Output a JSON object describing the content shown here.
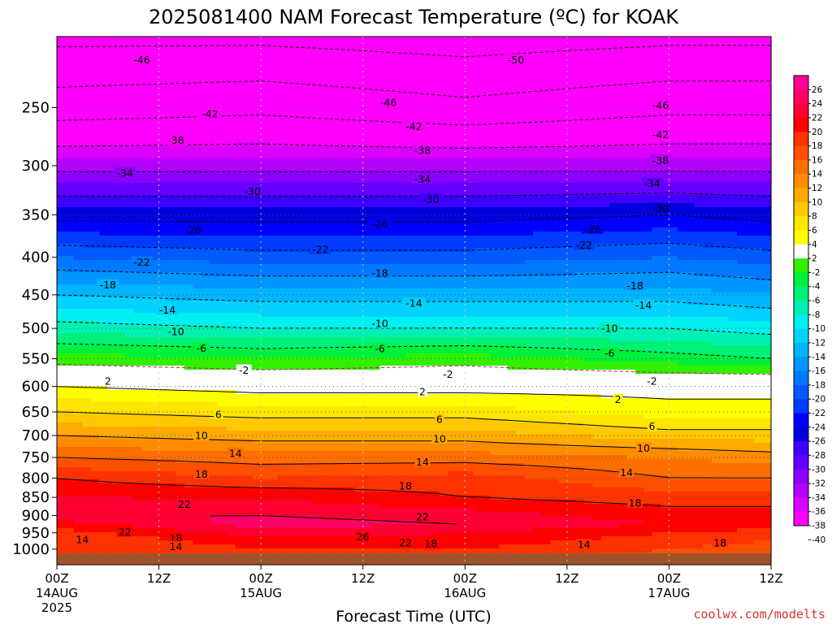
{
  "chart_data": {
    "type": "heatmap",
    "title": "2025081400 NAM Forecast Temperature (ºC) for KOAK",
    "xlabel": "Forecast Time (UTC)",
    "ylabel": "",
    "y_scale": "log",
    "y_range_hpa": [
      200,
      1050
    ],
    "x_range_hours": [
      0,
      84
    ],
    "x_ticks": [
      {
        "hour": 0,
        "lines": [
          "00Z",
          "14AUG",
          "2025"
        ]
      },
      {
        "hour": 12,
        "lines": [
          "12Z"
        ]
      },
      {
        "hour": 24,
        "lines": [
          "00Z",
          "15AUG"
        ]
      },
      {
        "hour": 36,
        "lines": [
          "12Z"
        ]
      },
      {
        "hour": 48,
        "lines": [
          "00Z",
          "16AUG"
        ]
      },
      {
        "hour": 60,
        "lines": [
          "12Z"
        ]
      },
      {
        "hour": 72,
        "lines": [
          "00Z",
          "17AUG"
        ]
      },
      {
        "hour": 84,
        "lines": [
          "12Z"
        ]
      }
    ],
    "y_ticks": [
      "250",
      "300",
      "350",
      "400",
      "450",
      "500",
      "550",
      "600",
      "650",
      "700",
      "750",
      "800",
      "850",
      "900",
      "950",
      "1000"
    ],
    "grid": "dotted",
    "surface_color": "#a0522d",
    "surface_pressure_hpa": 1013,
    "colorbar": {
      "placement": "right",
      "levels": [
        "26",
        "24",
        "22",
        "20",
        "18",
        "16",
        "14",
        "12",
        "10",
        "8",
        "6",
        "4",
        "2",
        "-2",
        "-4",
        "-6",
        "-8",
        "-10",
        "-12",
        "-14",
        "-16",
        "-18",
        "-20",
        "-22",
        "-24",
        "-26",
        "-28",
        "-30",
        "-32",
        "-34",
        "-36",
        "-38",
        "-40"
      ],
      "colors": [
        "#ff0096",
        "#ff0064",
        "#ff0032",
        "#ff0000",
        "#ff3200",
        "#ff5000",
        "#ff6e00",
        "#ff8c00",
        "#ffaa00",
        "#ffc800",
        "#ffe600",
        "#ffff00",
        "#ffffff",
        "#30f000",
        "#00f03c",
        "#00f078",
        "#00f0b4",
        "#00f0f0",
        "#00d2ff",
        "#00b4ff",
        "#0096ff",
        "#0078ff",
        "#005aff",
        "#003cff",
        "#0000ff",
        "#0000dc",
        "#3c00ff",
        "#6400ff",
        "#8c00ff",
        "#b400ff",
        "#dc00ff",
        "#ff00ff"
      ]
    },
    "profiles": [
      {
        "hour": 0,
        "pressure_hpa": [
          1000,
          975,
          950,
          925,
          900,
          850,
          800,
          750,
          700,
          650,
          600,
          550,
          500,
          450,
          400,
          350,
          300,
          250,
          200
        ],
        "temp_c": [
          16,
          16,
          17,
          19,
          22,
          20,
          18,
          14,
          10,
          6,
          2,
          -3,
          -9,
          -14,
          -20,
          -27,
          -35,
          -44,
          -51
        ]
      },
      {
        "hour": 24,
        "pressure_hpa": [
          1000,
          975,
          950,
          925,
          900,
          850,
          800,
          750,
          700,
          650,
          600,
          550,
          500,
          450,
          400,
          350,
          300,
          250,
          200
        ],
        "temp_c": [
          18,
          19,
          21,
          23,
          22,
          20,
          16,
          13,
          9,
          5,
          1,
          -4,
          -10,
          -15,
          -21,
          -27,
          -35,
          -43,
          -51
        ]
      },
      {
        "hour": 48,
        "pressure_hpa": [
          1000,
          975,
          950,
          925,
          900,
          850,
          800,
          750,
          700,
          650,
          600,
          550,
          500,
          450,
          400,
          350,
          300,
          250,
          200
        ],
        "temp_c": [
          18,
          19,
          20,
          22,
          21,
          18,
          17,
          13,
          9,
          5,
          1,
          -3,
          -10,
          -15,
          -21,
          -27,
          -35,
          -45,
          -52
        ]
      },
      {
        "hour": 72,
        "pressure_hpa": [
          1000,
          975,
          950,
          925,
          900,
          850,
          800,
          750,
          700,
          650,
          600,
          550,
          500,
          450,
          400,
          350,
          300,
          250,
          200
        ],
        "temp_c": [
          16,
          17,
          18,
          20,
          19,
          17,
          14,
          12,
          7,
          3,
          1,
          -5,
          -10,
          -15,
          -20,
          -26,
          -35,
          -43,
          -51
        ]
      },
      {
        "hour": 84,
        "pressure_hpa": [
          1000,
          975,
          950,
          925,
          900,
          850,
          800,
          750,
          700,
          650,
          600,
          550,
          500,
          450,
          400,
          350,
          300,
          250,
          200
        ],
        "temp_c": [
          15,
          16,
          17,
          19,
          19,
          17,
          14,
          11,
          7,
          3,
          1,
          -6,
          -11,
          -16,
          -21,
          -27,
          -35,
          -43,
          -51
        ]
      }
    ],
    "contour_labels": [
      {
        "text": "-46",
        "hour": 10,
        "p": 215
      },
      {
        "text": "-50",
        "hour": 54,
        "p": 215
      },
      {
        "text": "-42",
        "hour": 18,
        "p": 255
      },
      {
        "text": "-46",
        "hour": 39,
        "p": 246
      },
      {
        "text": "-46",
        "hour": 71,
        "p": 248
      },
      {
        "text": "-42",
        "hour": 42,
        "p": 265
      },
      {
        "text": "-42",
        "hour": 71,
        "p": 272
      },
      {
        "text": "-38",
        "hour": 14,
        "p": 277
      },
      {
        "text": "-38",
        "hour": 43,
        "p": 286
      },
      {
        "text": "-38",
        "hour": 71,
        "p": 295
      },
      {
        "text": "-34",
        "hour": 8,
        "p": 307
      },
      {
        "text": "-34",
        "hour": 43,
        "p": 313
      },
      {
        "text": "-34",
        "hour": 70,
        "p": 317
      },
      {
        "text": "-30",
        "hour": 23,
        "p": 325
      },
      {
        "text": "-30",
        "hour": 44,
        "p": 333
      },
      {
        "text": "-30",
        "hour": 71,
        "p": 343
      },
      {
        "text": "-26",
        "hour": 16,
        "p": 367
      },
      {
        "text": "-26",
        "hour": 38,
        "p": 360
      },
      {
        "text": "-26",
        "hour": 63,
        "p": 366
      },
      {
        "text": "-22",
        "hour": 10,
        "p": 406
      },
      {
        "text": "-22",
        "hour": 31,
        "p": 390
      },
      {
        "text": "-22",
        "hour": 62,
        "p": 385
      },
      {
        "text": "-18",
        "hour": 6,
        "p": 436
      },
      {
        "text": "-18",
        "hour": 38,
        "p": 420
      },
      {
        "text": "-18",
        "hour": 68,
        "p": 437
      },
      {
        "text": "-14",
        "hour": 13,
        "p": 472
      },
      {
        "text": "-14",
        "hour": 42,
        "p": 462
      },
      {
        "text": "-14",
        "hour": 69,
        "p": 465
      },
      {
        "text": "-10",
        "hour": 14,
        "p": 505
      },
      {
        "text": "-10",
        "hour": 38,
        "p": 492
      },
      {
        "text": "-10",
        "hour": 65,
        "p": 500
      },
      {
        "text": "-6",
        "hour": 17,
        "p": 532
      },
      {
        "text": "-6",
        "hour": 38,
        "p": 533
      },
      {
        "text": "-6",
        "hour": 65,
        "p": 540
      },
      {
        "text": "-2",
        "hour": 22,
        "p": 570
      },
      {
        "text": "-2",
        "hour": 46,
        "p": 577
      },
      {
        "text": "-2",
        "hour": 70,
        "p": 590
      },
      {
        "text": "2",
        "hour": 6,
        "p": 590
      },
      {
        "text": "2",
        "hour": 43,
        "p": 610
      },
      {
        "text": "2",
        "hour": 66,
        "p": 625
      },
      {
        "text": "6",
        "hour": 19,
        "p": 655
      },
      {
        "text": "6",
        "hour": 45,
        "p": 665
      },
      {
        "text": "6",
        "hour": 70,
        "p": 680
      },
      {
        "text": "10",
        "hour": 17,
        "p": 700
      },
      {
        "text": "10",
        "hour": 45,
        "p": 707
      },
      {
        "text": "10",
        "hour": 69,
        "p": 728
      },
      {
        "text": "14",
        "hour": 21,
        "p": 740
      },
      {
        "text": "14",
        "hour": 43,
        "p": 760
      },
      {
        "text": "14",
        "hour": 67,
        "p": 786
      },
      {
        "text": "18",
        "hour": 17,
        "p": 790
      },
      {
        "text": "18",
        "hour": 41,
        "p": 820
      },
      {
        "text": "18",
        "hour": 68,
        "p": 865
      },
      {
        "text": "22",
        "hour": 15,
        "p": 868
      },
      {
        "text": "22",
        "hour": 43,
        "p": 903
      },
      {
        "text": "22",
        "hour": 8,
        "p": 947
      },
      {
        "text": "26",
        "hour": 36,
        "p": 962
      },
      {
        "text": "14",
        "hour": 3,
        "p": 970
      },
      {
        "text": "18",
        "hour": 14,
        "p": 965
      },
      {
        "text": "14",
        "hour": 14,
        "p": 992
      },
      {
        "text": "22",
        "hour": 41,
        "p": 980
      },
      {
        "text": "18",
        "hour": 44,
        "p": 983
      },
      {
        "text": "14",
        "hour": 62,
        "p": 985
      },
      {
        "text": "18",
        "hour": 78,
        "p": 980
      }
    ]
  },
  "credit": {
    "text": "coolwx.com/modelts",
    "color": "#dc3232"
  }
}
